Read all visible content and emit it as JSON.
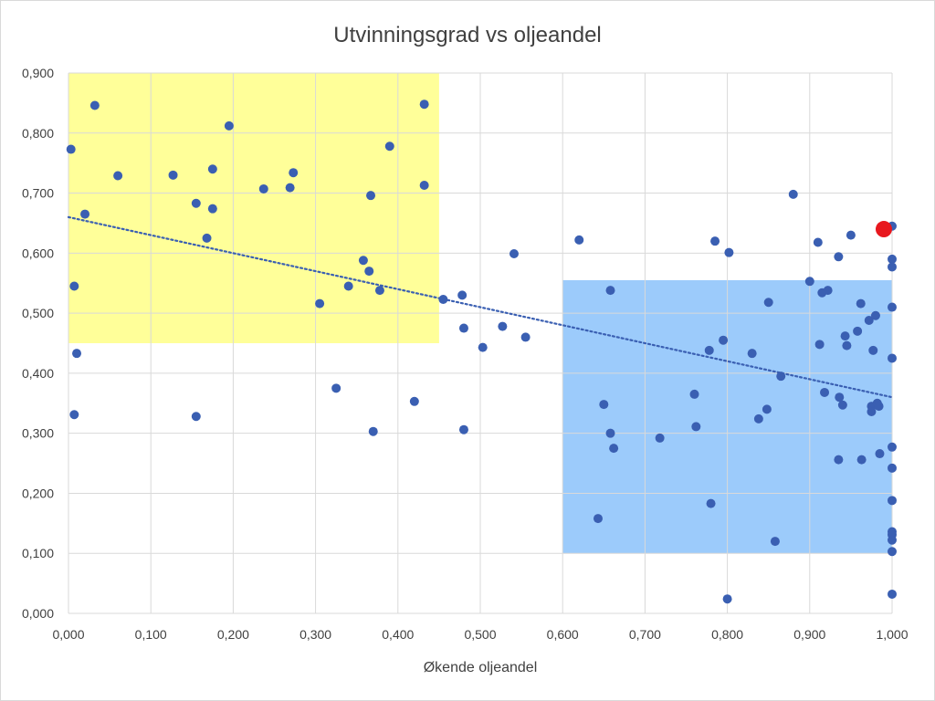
{
  "chart_data": {
    "type": "scatter",
    "title": "Utvinningsgrad vs oljeandel",
    "xlabel": "Økende oljeandel",
    "ylabel": "",
    "xlim": [
      0,
      1
    ],
    "ylim": [
      0,
      0.9
    ],
    "x_ticks": [
      "0,000",
      "0,100",
      "0,200",
      "0,300",
      "0,400",
      "0,500",
      "0,600",
      "0,700",
      "0,800",
      "0,900",
      "1,000"
    ],
    "y_ticks": [
      "0,000",
      "0,100",
      "0,200",
      "0,300",
      "0,400",
      "0,500",
      "0,600",
      "0,700",
      "0,800",
      "0,900"
    ],
    "grid": true,
    "legend": "none",
    "colors": {
      "points": "#3a5fb2",
      "highlight": "#e8181e",
      "trendline": "#3a5fb2",
      "region_yellow": "#ffff99",
      "region_blue": "#9ccbfb",
      "grid": "#d9d9d9"
    },
    "regions": [
      {
        "x0": 0.0,
        "x1": 0.45,
        "y0": 0.45,
        "y1": 0.9,
        "color": "#ffff99"
      },
      {
        "x0": 0.6,
        "x1": 1.0,
        "y0": 0.1,
        "y1": 0.555,
        "color": "#9ccbfb"
      }
    ],
    "trendline": {
      "x": [
        0.0,
        1.0
      ],
      "y": [
        0.66,
        0.36
      ],
      "style": "dotted"
    },
    "highlight_point": {
      "x": 0.99,
      "y": 0.64
    },
    "points": [
      [
        0.003,
        0.773
      ],
      [
        0.007,
        0.545
      ],
      [
        0.007,
        0.331
      ],
      [
        0.01,
        0.433
      ],
      [
        0.02,
        0.665
      ],
      [
        0.032,
        0.846
      ],
      [
        0.06,
        0.729
      ],
      [
        0.127,
        0.73
      ],
      [
        0.155,
        0.683
      ],
      [
        0.155,
        0.328
      ],
      [
        0.168,
        0.625
      ],
      [
        0.175,
        0.74
      ],
      [
        0.175,
        0.674
      ],
      [
        0.195,
        0.812
      ],
      [
        0.237,
        0.707
      ],
      [
        0.269,
        0.709
      ],
      [
        0.273,
        0.734
      ],
      [
        0.305,
        0.516
      ],
      [
        0.325,
        0.375
      ],
      [
        0.34,
        0.545
      ],
      [
        0.358,
        0.588
      ],
      [
        0.365,
        0.57
      ],
      [
        0.367,
        0.696
      ],
      [
        0.37,
        0.303
      ],
      [
        0.378,
        0.538
      ],
      [
        0.39,
        0.778
      ],
      [
        0.42,
        0.353
      ],
      [
        0.432,
        0.848
      ],
      [
        0.432,
        0.713
      ],
      [
        0.455,
        0.523
      ],
      [
        0.478,
        0.53
      ],
      [
        0.48,
        0.475
      ],
      [
        0.48,
        0.306
      ],
      [
        0.503,
        0.443
      ],
      [
        0.527,
        0.478
      ],
      [
        0.541,
        0.599
      ],
      [
        0.555,
        0.46
      ],
      [
        0.62,
        0.622
      ],
      [
        0.643,
        0.158
      ],
      [
        0.65,
        0.348
      ],
      [
        0.658,
        0.538
      ],
      [
        0.658,
        0.3
      ],
      [
        0.662,
        0.275
      ],
      [
        0.718,
        0.292
      ],
      [
        0.76,
        0.365
      ],
      [
        0.762,
        0.311
      ],
      [
        0.778,
        0.438
      ],
      [
        0.78,
        0.183
      ],
      [
        0.785,
        0.62
      ],
      [
        0.795,
        0.455
      ],
      [
        0.8,
        0.024
      ],
      [
        0.802,
        0.601
      ],
      [
        0.83,
        0.433
      ],
      [
        0.838,
        0.324
      ],
      [
        0.848,
        0.34
      ],
      [
        0.85,
        0.518
      ],
      [
        0.858,
        0.12
      ],
      [
        0.865,
        0.395
      ],
      [
        0.88,
        0.698
      ],
      [
        0.9,
        0.553
      ],
      [
        0.91,
        0.618
      ],
      [
        0.912,
        0.448
      ],
      [
        0.915,
        0.534
      ],
      [
        0.918,
        0.368
      ],
      [
        0.922,
        0.538
      ],
      [
        0.935,
        0.594
      ],
      [
        0.935,
        0.256
      ],
      [
        0.936,
        0.36
      ],
      [
        0.94,
        0.347
      ],
      [
        0.943,
        0.462
      ],
      [
        0.945,
        0.446
      ],
      [
        0.95,
        0.63
      ],
      [
        0.958,
        0.47
      ],
      [
        0.962,
        0.516
      ],
      [
        0.963,
        0.256
      ],
      [
        0.972,
        0.488
      ],
      [
        0.975,
        0.345
      ],
      [
        0.975,
        0.336
      ],
      [
        0.977,
        0.438
      ],
      [
        0.98,
        0.496
      ],
      [
        0.982,
        0.35
      ],
      [
        0.984,
        0.345
      ],
      [
        0.985,
        0.266
      ],
      [
        1.0,
        0.645
      ],
      [
        1.0,
        0.59
      ],
      [
        1.0,
        0.577
      ],
      [
        1.0,
        0.51
      ],
      [
        1.0,
        0.425
      ],
      [
        1.0,
        0.277
      ],
      [
        1.0,
        0.242
      ],
      [
        1.0,
        0.188
      ],
      [
        1.0,
        0.136
      ],
      [
        1.0,
        0.131
      ],
      [
        1.0,
        0.122
      ],
      [
        1.0,
        0.103
      ],
      [
        1.0,
        0.032
      ]
    ]
  }
}
